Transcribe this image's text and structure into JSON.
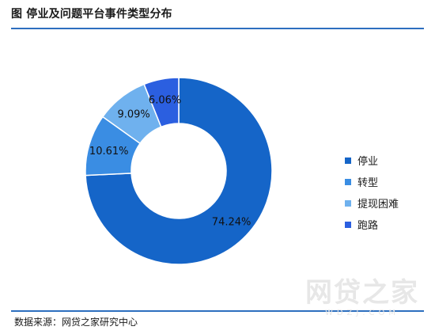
{
  "header": {
    "title": "图 停业及问题平台事件类型分布"
  },
  "chart_data": {
    "type": "pie",
    "variant": "donut",
    "title": "图 停业及问题平台事件类型分布",
    "labels": [
      "停业",
      "转型",
      "提现困难",
      "跑路"
    ],
    "values": [
      74.24,
      10.61,
      9.09,
      6.06
    ],
    "value_labels": [
      "74.24%",
      "10.61%",
      "9.09%",
      "6.06%"
    ],
    "colors": [
      "#1565c8",
      "#3a8de3",
      "#6fb1ee",
      "#2b5fe0"
    ],
    "legend_position": "right",
    "start_angle_deg": 0,
    "direction": "clockwise",
    "colors_note": "slice colors in order"
  },
  "footer": {
    "source": "数据来源：网贷之家研究中心"
  },
  "watermark": {
    "logo": "网贷之家",
    "url": "WDZJ.COM"
  }
}
